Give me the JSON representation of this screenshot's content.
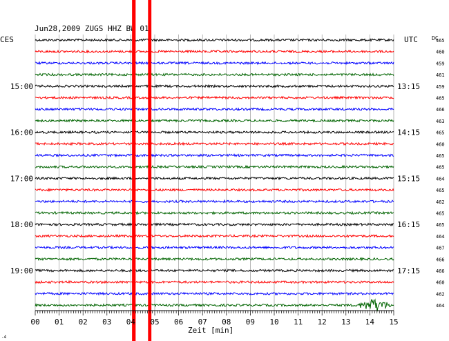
{
  "chart_data": {
    "type": "line",
    "title": "Jun28,2009   ZUGS HHZ BW 01",
    "left_timezone": "CES",
    "right_timezone": "UTC",
    "dc_label": "DC",
    "xlabel": "Zeit [min]",
    "xlim": [
      0,
      15
    ],
    "x_ticks": [
      "00",
      "01",
      "02",
      "03",
      "04",
      "05",
      "06",
      "07",
      "08",
      "09",
      "10",
      "11",
      "12",
      "13",
      "14",
      "15"
    ],
    "trace_colors": [
      "#000000",
      "#ff0000",
      "#0000ff",
      "#006400"
    ],
    "left_hour_labels": [
      {
        "row": 4,
        "label": "15:00"
      },
      {
        "row": 8,
        "label": "16:00"
      },
      {
        "row": 12,
        "label": "17:00"
      },
      {
        "row": 16,
        "label": "18:00"
      },
      {
        "row": 20,
        "label": "19:00"
      }
    ],
    "right_hour_labels": [
      {
        "row": 4,
        "label": "13:15"
      },
      {
        "row": 8,
        "label": "14:15"
      },
      {
        "row": 12,
        "label": "15:15"
      },
      {
        "row": 16,
        "label": "16:15"
      },
      {
        "row": 20,
        "label": "17:15"
      }
    ],
    "dc_values": [
      "465",
      "460",
      "459",
      "461",
      "459",
      "465",
      "466",
      "463",
      "465",
      "460",
      "465",
      "465",
      "464",
      "465",
      "462",
      "465",
      "465",
      "464",
      "467",
      "466",
      "466",
      "460",
      "462",
      "464"
    ],
    "events": [
      {
        "type": "saturated",
        "color": "#ff0000",
        "x_start": 4.05,
        "x_end": 4.2
      },
      {
        "type": "saturated",
        "color": "#ff0000",
        "x_start": 4.72,
        "x_end": 4.86
      }
    ],
    "local_event": {
      "row": 23,
      "x_start": 13.4,
      "x_end": 15.0
    }
  },
  "footer_mark": "-4"
}
